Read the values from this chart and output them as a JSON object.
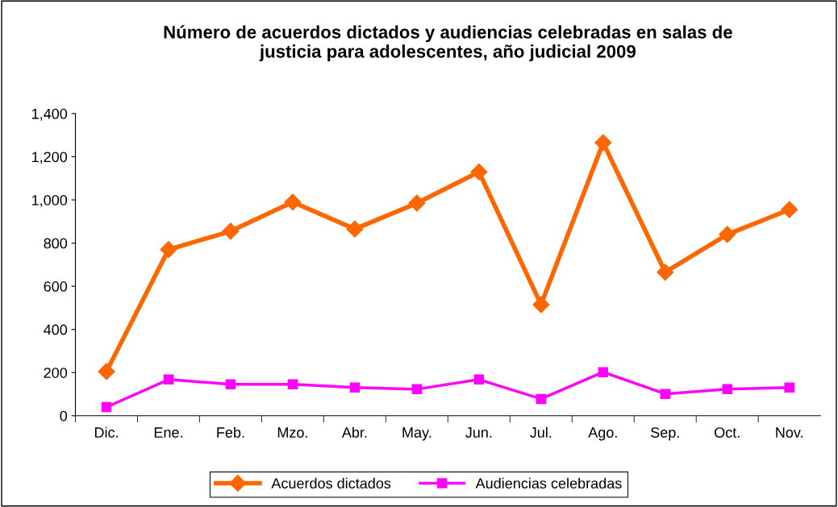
{
  "chart_data": {
    "type": "line",
    "title": "Número de acuerdos dictados y audiencias celebradas en salas de\njusticia para adolescentes, año judicial 2009",
    "categories": [
      "Dic.",
      "Ene.",
      "Feb.",
      "Mzo.",
      "Abr.",
      "May.",
      "Jun.",
      "Jul.",
      "Ago.",
      "Sep.",
      "Oct.",
      "Nov."
    ],
    "series": [
      {
        "name": "Acuerdos dictados",
        "color": "#ff6600",
        "marker": "diamond",
        "values": [
          205,
          770,
          855,
          990,
          865,
          985,
          1130,
          515,
          1265,
          665,
          840,
          955
        ]
      },
      {
        "name": "Audiencias celebradas",
        "color": "#ff00ff",
        "marker": "square",
        "values": [
          40,
          168,
          146,
          146,
          131,
          123,
          168,
          78,
          202,
          101,
          123,
          131
        ]
      }
    ],
    "ylim": [
      0,
      1400
    ],
    "yticks": [
      {
        "value": 0,
        "label": "0"
      },
      {
        "value": 200,
        "label": "200"
      },
      {
        "value": 400,
        "label": "400"
      },
      {
        "value": 600,
        "label": "600"
      },
      {
        "value": 800,
        "label": "800"
      },
      {
        "value": 1000,
        "label": "1,000"
      },
      {
        "value": 1200,
        "label": "1,200"
      },
      {
        "value": 1400,
        "label": "1,400"
      }
    ],
    "grid": false,
    "legend": "bottom",
    "line_style": "solid"
  }
}
